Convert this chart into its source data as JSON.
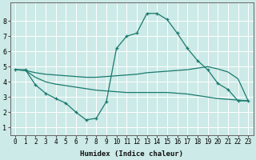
{
  "xlabel": "Humidex (Indice chaleur)",
  "background_color": "#cceae7",
  "grid_color": "#ffffff",
  "line_color": "#1a7a6e",
  "x_range": [
    -0.5,
    23.5
  ],
  "y_range": [
    0.5,
    9.2
  ],
  "x_ticks": [
    0,
    1,
    2,
    3,
    4,
    5,
    6,
    7,
    8,
    9,
    10,
    11,
    12,
    13,
    14,
    15,
    16,
    17,
    18,
    19,
    20,
    21,
    22,
    23
  ],
  "y_ticks": [
    1,
    2,
    3,
    4,
    5,
    6,
    7,
    8
  ],
  "line1_x": [
    0,
    1,
    2,
    3,
    4,
    5,
    6,
    7,
    8,
    9,
    10,
    11,
    12,
    13,
    14,
    15,
    16,
    17,
    18,
    19,
    20,
    21,
    22,
    23
  ],
  "line1_y": [
    4.8,
    4.8,
    3.8,
    3.25,
    2.9,
    2.6,
    2.0,
    1.5,
    1.6,
    2.7,
    6.2,
    7.0,
    7.2,
    8.5,
    8.5,
    8.1,
    7.2,
    6.2,
    5.4,
    4.8,
    3.9,
    3.5,
    2.75,
    2.75
  ],
  "line2_x": [
    0,
    1,
    2,
    3,
    4,
    5,
    6,
    7,
    8,
    9,
    10,
    11,
    12,
    13,
    14,
    15,
    16,
    17,
    18,
    19,
    20,
    21,
    22,
    23
  ],
  "line2_y": [
    4.8,
    4.75,
    4.6,
    4.5,
    4.45,
    4.4,
    4.35,
    4.3,
    4.3,
    4.35,
    4.4,
    4.45,
    4.5,
    4.6,
    4.65,
    4.7,
    4.75,
    4.8,
    4.9,
    5.0,
    4.85,
    4.65,
    4.2,
    2.75
  ],
  "line3_x": [
    0,
    1,
    2,
    3,
    4,
    5,
    6,
    7,
    8,
    9,
    10,
    11,
    12,
    13,
    14,
    15,
    16,
    17,
    18,
    19,
    20,
    21,
    22,
    23
  ],
  "line3_y": [
    4.8,
    4.75,
    4.3,
    4.0,
    3.85,
    3.75,
    3.65,
    3.55,
    3.45,
    3.4,
    3.35,
    3.3,
    3.3,
    3.3,
    3.3,
    3.3,
    3.25,
    3.2,
    3.1,
    3.0,
    2.9,
    2.85,
    2.8,
    2.75
  ]
}
